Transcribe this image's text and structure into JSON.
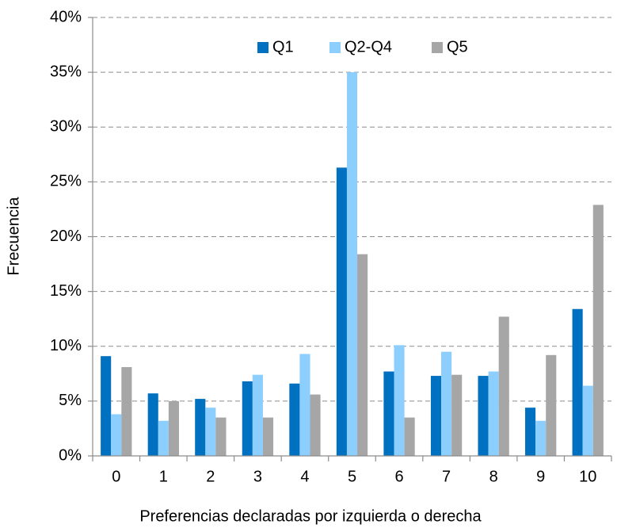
{
  "chart_data": {
    "type": "bar",
    "x_label": "Preferencias declaradas por izquierda o derecha",
    "y_label": "Frecuencia",
    "categories": [
      "0",
      "1",
      "2",
      "3",
      "4",
      "5",
      "6",
      "7",
      "8",
      "9",
      "10"
    ],
    "series": [
      {
        "name": "Q1",
        "color": "#0070c0",
        "values": [
          9.1,
          5.7,
          5.2,
          6.8,
          6.6,
          26.3,
          7.7,
          7.3,
          7.3,
          4.4,
          13.4
        ]
      },
      {
        "name": "Q2-Q4",
        "color": "#8ccfff",
        "values": [
          3.8,
          3.2,
          4.4,
          7.4,
          9.3,
          35.0,
          10.1,
          9.5,
          7.7,
          3.2,
          6.4
        ]
      },
      {
        "name": "Q5",
        "color": "#a6a6a6",
        "values": [
          8.1,
          5.0,
          3.5,
          3.5,
          5.6,
          18.4,
          3.5,
          7.4,
          12.7,
          9.2,
          22.9
        ]
      }
    ],
    "ylim": [
      0,
      40
    ],
    "yticks": [
      {
        "value": 0,
        "label": "0%"
      },
      {
        "value": 5,
        "label": "5%"
      },
      {
        "value": 10,
        "label": "10%"
      },
      {
        "value": 15,
        "label": "15%"
      },
      {
        "value": 20,
        "label": "20%"
      },
      {
        "value": 25,
        "label": "25%"
      },
      {
        "value": 30,
        "label": "30%"
      },
      {
        "value": 35,
        "label": "35%"
      },
      {
        "value": 40,
        "label": "40%"
      }
    ],
    "grid": true,
    "legend": "top"
  }
}
